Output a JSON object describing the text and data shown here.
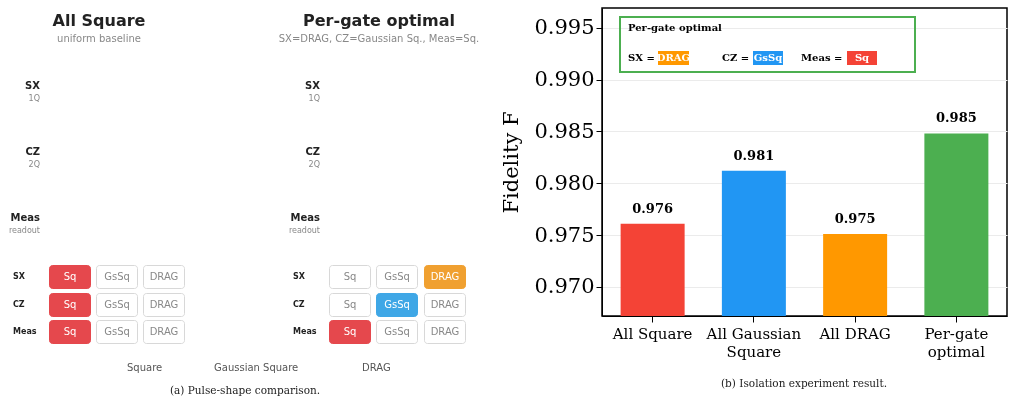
{
  "chart_data": [
    {
      "type": "other",
      "annotations": [
        "All Square",
        "uniform baseline",
        "Per-gate optimal",
        "SX=DRAG, CZ=Gaussian Sq., Meas=Sq.",
        "SX",
        "1Q",
        "CZ",
        "2Q",
        "Meas",
        "readout",
        "SX",
        "1Q",
        "CZ",
        "2Q",
        "Meas",
        "readout",
        "SX",
        "CZ",
        "Meas",
        "SX",
        "CZ",
        "Meas",
        "Sq",
        "GsSq",
        "DRAG",
        "Sq",
        "GsSq",
        "DRAG",
        "Sq",
        "GsSq",
        "DRAG",
        "Sq",
        "GsSq",
        "DRAG",
        "Sq",
        "GsSq",
        "DRAG",
        "Sq",
        "GsSq",
        "DRAG",
        "Square",
        "Gaussian Square",
        "DRAG",
        "(a) Pulse-shape comparison."
      ]
    },
    {
      "type": "bar",
      "categories": [
        "All Square",
        "All Gaussian Square",
        "All DRAG",
        "Per-gate optimal"
      ],
      "values": [
        0.9761,
        0.9812,
        0.9751,
        0.9848
      ],
      "colors": [
        "#f44336",
        "#2196f3",
        "#ff9800",
        "#4caf50"
      ],
      "value_labels": [
        "0.976",
        "0.981",
        "0.975",
        "0.985"
      ],
      "ylabel": "Fidelity F",
      "ylim": [
        0.9672,
        0.9969
      ],
      "yticks": [
        {
          "value": 0.97,
          "label": "0.970"
        },
        0.975,
        {
          "value": 0.98,
          "label": "0.980"
        },
        0.985,
        {
          "value": 0.99,
          "label": "0.990"
        },
        0.995
      ],
      "grid": "y",
      "annotations": [
        "Per-gate optimal",
        "SX =",
        "DRAG",
        "CZ =",
        "GsSq",
        "Meas =",
        "Sq",
        "(b) Isolation experiment result."
      ]
    }
  ]
}
